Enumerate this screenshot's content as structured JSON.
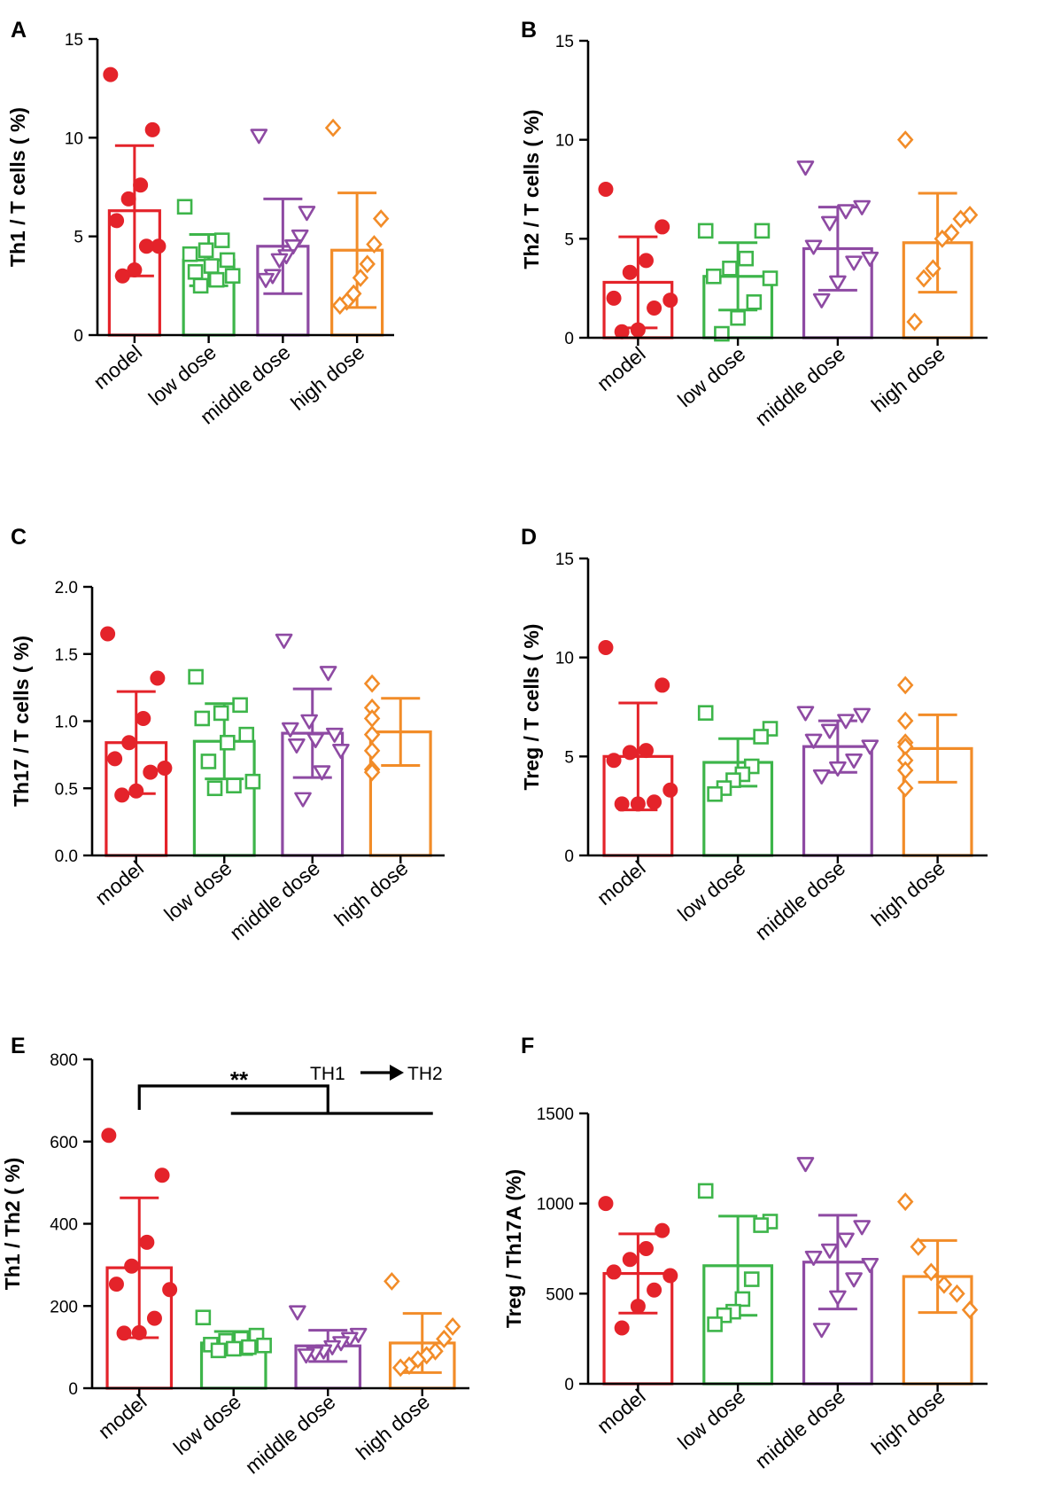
{
  "figure": {
    "colors": {
      "model": "#e4232a",
      "low dose": "#3db54a",
      "middle dose": "#8e4aa3",
      "high dose": "#f28c28"
    }
  },
  "chart_data": [
    {
      "panel": "A",
      "type": "bar",
      "ylabel": "Th1 / T cells ( %)",
      "ylim": [
        0,
        15
      ],
      "yticks": [
        "0",
        "5",
        "10",
        "15"
      ],
      "categories": [
        "model",
        "low dose",
        "middle dose",
        "high dose"
      ],
      "markers": [
        "filled-circle",
        "open-square",
        "open-triangle-down",
        "open-diamond"
      ],
      "means": [
        6.3,
        3.8,
        4.5,
        4.3
      ],
      "sd": [
        3.3,
        1.3,
        2.4,
        2.9
      ],
      "points": [
        [
          13.2,
          10.4,
          7.6,
          6.9,
          5.8,
          4.5,
          4.5,
          3.3,
          3.0
        ],
        [
          6.5,
          4.8,
          4.3,
          4.1,
          3.8,
          3.5,
          3.2,
          3.0,
          2.8,
          2.5
        ],
        [
          10.1,
          6.2,
          5.0,
          4.5,
          4.0,
          3.8,
          3.0,
          2.8
        ],
        [
          10.5,
          5.9,
          4.6,
          3.6,
          2.9,
          2.1,
          1.7,
          1.5
        ]
      ]
    },
    {
      "panel": "B",
      "type": "bar",
      "ylabel": "Th2 / T cells ( %)",
      "ylim": [
        0,
        15
      ],
      "yticks": [
        "0",
        "5",
        "10",
        "15"
      ],
      "categories": [
        "model",
        "low dose",
        "middle dose",
        "high dose"
      ],
      "markers": [
        "filled-circle",
        "open-square",
        "open-triangle-down",
        "open-diamond"
      ],
      "means": [
        2.8,
        3.1,
        4.5,
        4.8
      ],
      "sd": [
        2.3,
        1.7,
        2.1,
        2.5
      ],
      "points": [
        [
          7.5,
          5.6,
          3.9,
          3.3,
          2.0,
          1.9,
          1.5,
          0.4,
          0.3
        ],
        [
          5.4,
          5.4,
          4.0,
          3.5,
          3.1,
          3.0,
          1.8,
          1.0,
          0.2
        ],
        [
          8.6,
          6.6,
          6.4,
          5.8,
          4.6,
          4.0,
          3.8,
          2.8,
          1.9
        ],
        [
          10.0,
          6.2,
          6.0,
          5.3,
          5.0,
          3.5,
          3.0,
          0.8
        ]
      ]
    },
    {
      "panel": "C",
      "type": "bar",
      "ylabel": "Th17 / T cells ( %)",
      "ylim": [
        0,
        2.0
      ],
      "yticks": [
        "0.0",
        "0.5",
        "1.0",
        "1.5",
        "2.0"
      ],
      "categories": [
        "model",
        "low dose",
        "middle dose",
        "high dose"
      ],
      "markers": [
        "filled-circle",
        "open-square",
        "open-triangle-down",
        "open-diamond"
      ],
      "means": [
        0.84,
        0.85,
        0.91,
        0.92
      ],
      "sd": [
        0.38,
        0.28,
        0.33,
        0.25
      ],
      "points": [
        [
          1.65,
          1.32,
          1.02,
          0.84,
          0.72,
          0.65,
          0.62,
          0.48,
          0.45
        ],
        [
          1.33,
          1.12,
          1.06,
          1.02,
          0.9,
          0.84,
          0.7,
          0.55,
          0.52,
          0.5
        ],
        [
          1.6,
          1.36,
          1.0,
          0.94,
          0.9,
          0.86,
          0.82,
          0.78,
          0.62,
          0.42
        ],
        [
          1.28,
          1.1,
          1.02,
          0.9,
          0.78,
          0.64,
          0.62
        ]
      ]
    },
    {
      "panel": "D",
      "type": "bar",
      "ylabel": "Treg / T cells ( %)",
      "ylim": [
        0,
        15
      ],
      "yticks": [
        "0",
        "5",
        "10",
        "15"
      ],
      "categories": [
        "model",
        "low dose",
        "middle dose",
        "high dose"
      ],
      "markers": [
        "filled-circle",
        "open-square",
        "open-triangle-down",
        "open-diamond"
      ],
      "means": [
        5.0,
        4.7,
        5.5,
        5.4
      ],
      "sd": [
        2.7,
        1.2,
        1.3,
        1.7
      ],
      "points": [
        [
          10.5,
          8.6,
          5.3,
          5.2,
          4.8,
          3.3,
          2.7,
          2.6,
          2.6
        ],
        [
          7.2,
          6.4,
          6.0,
          4.5,
          4.1,
          3.8,
          3.4,
          3.1
        ],
        [
          7.2,
          7.1,
          6.8,
          6.3,
          5.8,
          5.5,
          4.8,
          4.4,
          4.0
        ],
        [
          8.6,
          6.8,
          5.7,
          5.5,
          4.8,
          4.3,
          3.4
        ]
      ]
    },
    {
      "panel": "E",
      "type": "bar",
      "ylabel": "Th1 / Th2 ( %)",
      "ylim": [
        0,
        800
      ],
      "yticks": [
        "0",
        "200",
        "400",
        "600",
        "800"
      ],
      "categories": [
        "model",
        "low dose",
        "middle dose",
        "high dose"
      ],
      "markers": [
        "filled-circle",
        "open-square",
        "open-triangle-down",
        "open-diamond"
      ],
      "means": [
        293,
        110,
        103,
        110
      ],
      "sd": [
        170,
        28,
        38,
        72
      ],
      "points": [
        [
          615,
          518,
          355,
          297,
          253,
          240,
          170,
          135,
          134
        ],
        [
          172,
          128,
          120,
          115,
          106,
          104,
          100,
          96,
          92
        ],
        [
          185,
          130,
          120,
          110,
          100,
          90,
          85,
          80
        ],
        [
          260,
          150,
          120,
          90,
          80,
          70,
          55,
          50
        ]
      ],
      "significance": "**",
      "annotation": {
        "from": "TH1",
        "arrow": "→",
        "to": "TH2"
      }
    },
    {
      "panel": "F",
      "type": "bar",
      "ylabel": "Treg / Th17A (%)",
      "ylim": [
        0,
        1500
      ],
      "yticks": [
        "0",
        "500",
        "1000",
        "1500"
      ],
      "categories": [
        "model",
        "low dose",
        "middle dose",
        "high dose"
      ],
      "markers": [
        "filled-circle",
        "open-square",
        "open-triangle-down",
        "open-diamond"
      ],
      "means": [
        612,
        655,
        675,
        595
      ],
      "sd": [
        220,
        275,
        260,
        200
      ],
      "points": [
        [
          1000,
          850,
          750,
          690,
          620,
          600,
          520,
          430,
          310
        ],
        [
          1070,
          900,
          880,
          580,
          470,
          400,
          380,
          330
        ],
        [
          1220,
          870,
          800,
          740,
          700,
          660,
          580,
          480,
          300
        ],
        [
          1010,
          760,
          620,
          550,
          500,
          410
        ]
      ]
    }
  ]
}
